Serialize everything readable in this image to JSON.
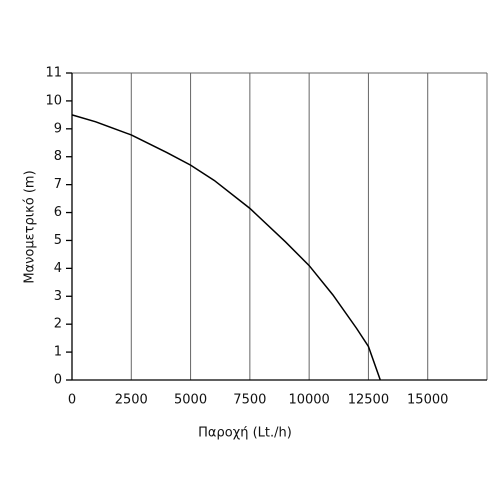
{
  "chart_data": {
    "type": "line",
    "x_label": "Παροχή (Lt./h)",
    "y_label": "Μανομετρικό  (m)",
    "series": [
      {
        "color": "#000000",
        "x": [
          0,
          1000,
          2500,
          4000,
          5000,
          6000,
          7500,
          9000,
          10000,
          11000,
          12000,
          12500,
          13000
        ],
        "values": [
          9.5,
          9.25,
          8.78,
          8.15,
          7.7,
          7.15,
          6.15,
          4.95,
          4.1,
          3.05,
          1.85,
          1.2,
          0
        ]
      }
    ],
    "xlim": [
      0,
      17500
    ],
    "xticks": [
      0,
      2500,
      5000,
      7500,
      10000,
      12500,
      15000
    ],
    "ylim": [
      0,
      11
    ],
    "yticks": [
      0,
      1,
      2,
      3,
      4,
      5,
      6,
      7,
      8,
      9,
      10,
      11
    ],
    "grid": "x"
  }
}
